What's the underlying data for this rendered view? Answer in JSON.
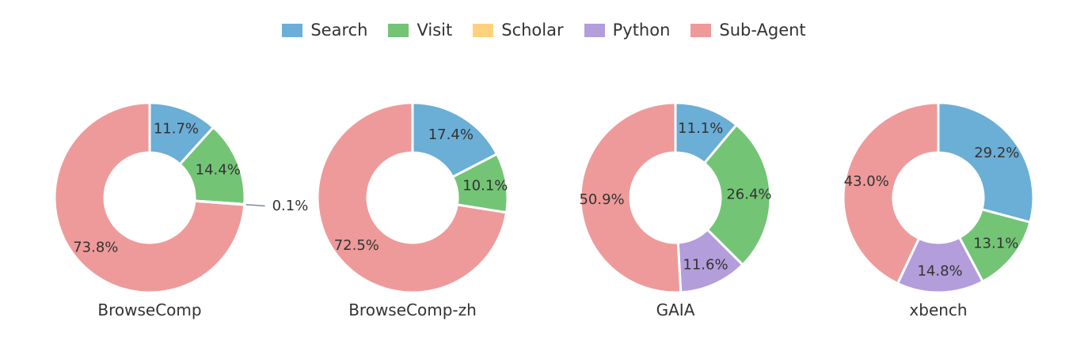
{
  "legend": {
    "items": [
      {
        "label": "Search",
        "color": "#6BAED6"
      },
      {
        "label": "Visit",
        "color": "#74C476"
      },
      {
        "label": "Scholar",
        "color": "#FDD17E"
      },
      {
        "label": "Python",
        "color": "#B39DDB"
      },
      {
        "label": "Sub-Agent",
        "color": "#EE9A9A"
      }
    ]
  },
  "chart_data": [
    {
      "type": "pie",
      "title": "BrowseComp",
      "categories": [
        "Search",
        "Visit",
        "Scholar",
        "Python",
        "Sub-Agent"
      ],
      "values": [
        11.7,
        14.4,
        0.1,
        0.0,
        73.8
      ],
      "labels": [
        "11.7%",
        "14.4%",
        "0.1%",
        "",
        "73.8%"
      ]
    },
    {
      "type": "pie",
      "title": "BrowseComp-zh",
      "categories": [
        "Search",
        "Visit",
        "Scholar",
        "Python",
        "Sub-Agent"
      ],
      "values": [
        17.4,
        10.1,
        0.0,
        0.0,
        72.5
      ],
      "labels": [
        "17.4%",
        "10.1%",
        "",
        "",
        "72.5%"
      ]
    },
    {
      "type": "pie",
      "title": "GAIA",
      "categories": [
        "Search",
        "Visit",
        "Scholar",
        "Python",
        "Sub-Agent"
      ],
      "values": [
        11.1,
        26.4,
        0.0,
        11.6,
        50.9
      ],
      "labels": [
        "11.1%",
        "26.4%",
        "",
        "11.6%",
        "50.9%"
      ]
    },
    {
      "type": "pie",
      "title": "xbench",
      "categories": [
        "Search",
        "Visit",
        "Scholar",
        "Python",
        "Sub-Agent"
      ],
      "values": [
        29.2,
        13.1,
        0.0,
        14.8,
        43.0
      ],
      "labels": [
        "29.2%",
        "13.1%",
        "",
        "14.8%",
        "43.0%"
      ]
    }
  ]
}
